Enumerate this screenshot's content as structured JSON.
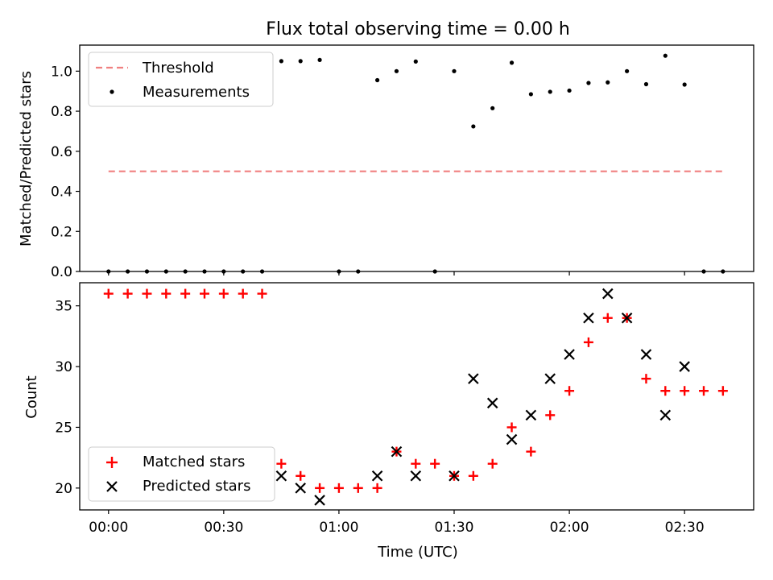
{
  "figure": {
    "title": "Flux total observing time = 0.00 h",
    "xlabel": "Time (UTC)",
    "x_ticks": [
      "00:00",
      "00:30",
      "01:00",
      "01:30",
      "02:00",
      "02:30"
    ],
    "x_tick_minutes": [
      0,
      30,
      60,
      90,
      120,
      150
    ],
    "xlim_minutes": [
      -7.5,
      168.0
    ]
  },
  "chart_data": [
    {
      "type": "scatter",
      "title": "Flux total observing time = 0.00 h",
      "xlabel": "",
      "ylabel": "Matched/Predicted stars",
      "ylim": [
        0,
        1.13
      ],
      "y_ticks": [
        0.0,
        0.2,
        0.4,
        0.6,
        0.8,
        1.0
      ],
      "y_tick_labels": [
        "0.0",
        "0.2",
        "0.4",
        "0.6",
        "0.8",
        "1.0"
      ],
      "legend_position": "upper-left",
      "threshold": {
        "name": "Threshold",
        "value": 0.5,
        "x_start": "00:00",
        "x_end": "02:40",
        "color": "#f08080"
      },
      "series": [
        {
          "name": "Measurements",
          "color": "#000000",
          "x": [
            "00:00",
            "00:05",
            "00:10",
            "00:15",
            "00:20",
            "00:25",
            "00:30",
            "00:35",
            "00:40",
            "00:45",
            "00:50",
            "00:55",
            "01:00",
            "01:05",
            "01:10",
            "01:15",
            "01:20",
            "01:25",
            "01:30",
            "01:35",
            "01:40",
            "01:45",
            "01:50",
            "01:55",
            "02:00",
            "02:05",
            "02:10",
            "02:15",
            "02:20",
            "02:25",
            "02:30",
            "02:35",
            "02:40"
          ],
          "y": [
            0.0,
            0.0,
            0.0,
            0.0,
            0.0,
            0.0,
            0.0,
            0.0,
            0.0,
            1.05,
            1.05,
            1.056,
            0.0,
            0.0,
            0.955,
            1.0,
            1.048,
            0.0,
            1.0,
            0.724,
            0.815,
            1.042,
            0.885,
            0.897,
            0.903,
            0.941,
            0.944,
            1.0,
            0.935,
            1.077,
            0.933,
            0.0,
            0.0
          ]
        }
      ]
    },
    {
      "type": "scatter",
      "title": "",
      "xlabel": "Time (UTC)",
      "ylabel": "Count",
      "ylim": [
        18.2,
        36.9
      ],
      "y_ticks": [
        20,
        25,
        30,
        35
      ],
      "y_tick_labels": [
        "20",
        "25",
        "30",
        "35"
      ],
      "legend_position": "lower-left",
      "series": [
        {
          "name": "Matched stars",
          "marker": "plus",
          "color": "#ff0000",
          "x": [
            "00:00",
            "00:05",
            "00:10",
            "00:15",
            "00:20",
            "00:25",
            "00:30",
            "00:35",
            "00:40",
            "00:45",
            "00:50",
            "00:55",
            "01:00",
            "01:05",
            "01:10",
            "01:15",
            "01:20",
            "01:25",
            "01:30",
            "01:35",
            "01:40",
            "01:45",
            "01:50",
            "01:55",
            "02:00",
            "02:05",
            "02:10",
            "02:15",
            "02:20",
            "02:25",
            "02:30",
            "02:35",
            "02:40"
          ],
          "y": [
            36,
            36,
            36,
            36,
            36,
            36,
            36,
            36,
            36,
            22,
            21,
            20,
            20,
            20,
            20,
            23,
            22,
            22,
            21,
            21,
            22,
            25,
            23,
            26,
            28,
            32,
            34,
            34,
            29,
            28,
            28,
            28,
            28
          ]
        },
        {
          "name": "Predicted stars",
          "marker": "x",
          "color": "#000000",
          "x": [
            "00:45",
            "00:50",
            "00:55",
            "01:10",
            "01:15",
            "01:20",
            "01:30",
            "01:35",
            "01:40",
            "01:45",
            "01:50",
            "01:55",
            "02:00",
            "02:05",
            "02:10",
            "02:15",
            "02:20",
            "02:25",
            "02:30"
          ],
          "y": [
            21,
            20,
            19,
            21,
            23,
            21,
            21,
            29,
            27,
            24,
            26,
            29,
            31,
            34,
            36,
            34,
            31,
            26,
            30
          ]
        }
      ]
    }
  ]
}
